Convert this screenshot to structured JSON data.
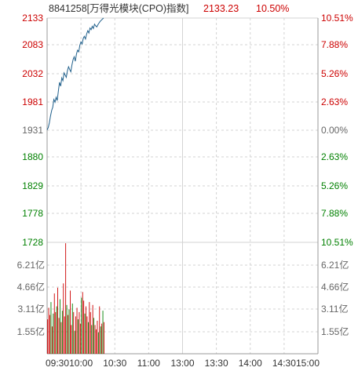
{
  "header": {
    "title": "8841258[万得光模块(CPO)指数]",
    "price": "2133.23",
    "change_pct": "10.50%"
  },
  "colors": {
    "up": "#cc0000",
    "down": "#008000",
    "neutral": "#666666",
    "line": "#1f5f8b",
    "grid": "#d3d3d3",
    "axis": "#999999",
    "title": "#333333"
  },
  "chart_data": [
    {
      "type": "line",
      "title": "",
      "x_ticks": [
        "09:30",
        "10:00",
        "10:30",
        "11:00",
        "13:00",
        "13:30",
        "14:00",
        "14:30",
        "15:00"
      ],
      "y_left_ticks": [
        "2133",
        "2083",
        "2032",
        "1981",
        "1931",
        "1880",
        "1829",
        "1778",
        "1728"
      ],
      "y_right_ticks": [
        "10.51%",
        "7.88%",
        "5.26%",
        "2.63%",
        "0.00%",
        "2.63%",
        "5.26%",
        "7.88%",
        "10.51%"
      ],
      "y_tick_directions": [
        "up",
        "up",
        "up",
        "up",
        "neutral",
        "down",
        "down",
        "down",
        "down"
      ],
      "ylim": [
        1728,
        2133
      ],
      "baseline": 1931,
      "x_minutes_total": 240,
      "series": [
        {
          "minutes": [
            0,
            1,
            2,
            3,
            4,
            5,
            6,
            7,
            8,
            9,
            10,
            11,
            12,
            13,
            14,
            15,
            16,
            17,
            18,
            19,
            20,
            21,
            22,
            23,
            24,
            25,
            26,
            27,
            28,
            29,
            30,
            31,
            32,
            33,
            34,
            35,
            36,
            37,
            38,
            39,
            40,
            41,
            42,
            43,
            44,
            45,
            46,
            47,
            48,
            49,
            50
          ],
          "values": [
            1931,
            1935,
            1944,
            1956,
            1966,
            1972,
            1986,
            1981,
            1990,
            1984,
            2002,
            2017,
            2010,
            2025,
            2020,
            2034,
            2030,
            2026,
            2038,
            2045,
            2040,
            2036,
            2048,
            2058,
            2063,
            2055,
            2068,
            2075,
            2072,
            2084,
            2090,
            2086,
            2096,
            2100,
            2095,
            2104,
            2110,
            2106,
            2115,
            2112,
            2118,
            2114,
            2122,
            2119,
            2117,
            2121,
            2124,
            2127,
            2129,
            2131,
            2133
          ]
        }
      ]
    },
    {
      "type": "bar",
      "title": "",
      "y_ticks": [
        "6.21亿",
        "4.66亿",
        "3.11亿",
        "1.55亿"
      ],
      "y_tick_values": [
        6.21,
        4.66,
        3.11,
        1.55
      ],
      "ylim": [
        0,
        7.76
      ],
      "unit": "亿",
      "values": [
        2.4,
        3.2,
        2.7,
        3.6,
        1.9,
        2.8,
        4.2,
        2.9,
        3.3,
        4.6,
        2.5,
        3.8,
        2.2,
        3.0,
        4.9,
        2.6,
        7.7,
        3.4,
        2.7,
        3.1,
        4.4,
        2.0,
        3.5,
        2.9,
        1.6,
        2.6,
        3.2,
        2.4,
        2.9,
        2.1,
        3.9,
        4.3,
        3.7,
        2.8,
        3.3,
        2.6,
        2.2,
        3.6,
        2.9,
        2.0,
        3.4,
        2.5,
        2.0,
        1.7,
        2.3,
        1.5,
        3.3,
        1.9,
        2.1,
        3.0,
        2.2
      ],
      "directions": [
        "up",
        "up",
        "up",
        "down",
        "up",
        "down",
        "up",
        "up",
        "down",
        "up",
        "up",
        "down",
        "up",
        "down",
        "up",
        "up",
        "up",
        "down",
        "up",
        "down",
        "up",
        "up",
        "down",
        "up",
        "down",
        "up",
        "up",
        "down",
        "up",
        "up",
        "down",
        "up",
        "up",
        "down",
        "up",
        "up",
        "down",
        "up",
        "up",
        "down",
        "up",
        "down",
        "up",
        "up",
        "up",
        "down",
        "up",
        "down",
        "up",
        "down",
        "up"
      ]
    }
  ]
}
